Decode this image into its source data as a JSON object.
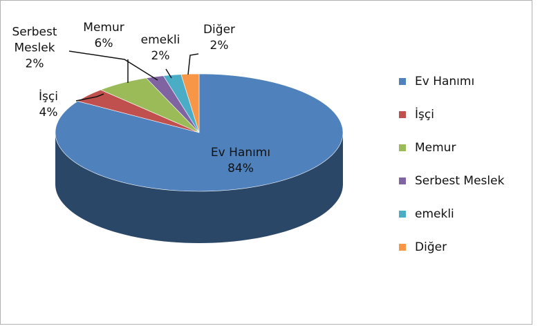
{
  "chart_data": {
    "type": "pie3d",
    "categories": [
      "Ev Hanımı",
      "İşçi",
      "Memur",
      "Serbest Meslek",
      "emekli",
      "Diğer"
    ],
    "values": [
      84,
      4,
      6,
      2,
      2,
      2
    ],
    "value_labels": [
      "84%",
      "4%",
      "6%",
      "2%",
      "2%",
      "2%"
    ],
    "colors": [
      "#4f81bd",
      "#c0504d",
      "#9bbb59",
      "#8064a2",
      "#4bacc6",
      "#f79646"
    ],
    "legend": "right"
  }
}
